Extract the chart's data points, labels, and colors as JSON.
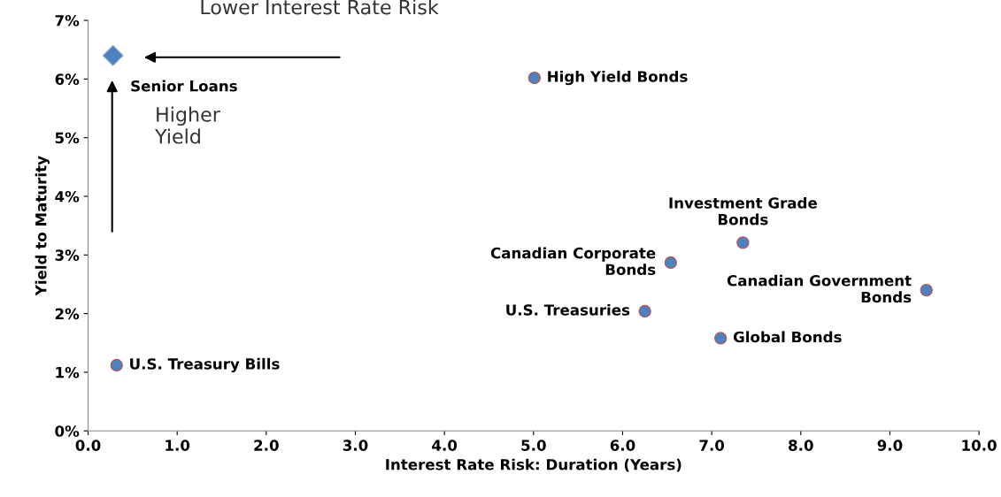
{
  "chart_data": {
    "type": "scatter",
    "xlabel": "Interest Rate Risk: Duration (Years)",
    "ylabel": "Yield to Maturity",
    "series": [
      {
        "name": "Senior Loans",
        "color": "#4f81bd",
        "marker": "diamond",
        "x": [
          0.28
        ],
        "values": [
          6.4
        ]
      },
      {
        "name": "High Yield Bonds",
        "color": "#4f81bd",
        "marker": "circle",
        "x": [
          5.01
        ],
        "values": [
          6.02
        ]
      },
      {
        "name": "Investment Grade\nBonds",
        "color": "#4f81bd",
        "marker": "circle",
        "x": [
          7.35
        ],
        "values": [
          3.21
        ]
      },
      {
        "name": "Canadian Corporate\nBonds",
        "color": "#4f81bd",
        "marker": "circle",
        "x": [
          6.54
        ],
        "values": [
          2.87
        ]
      },
      {
        "name": "Canadian Government\nBonds",
        "color": "#4f81bd",
        "marker": "circle",
        "x": [
          9.41
        ],
        "values": [
          2.4
        ]
      },
      {
        "name": "U.S. Treasuries",
        "color": "#4f81bd",
        "marker": "circle",
        "x": [
          6.25
        ],
        "values": [
          2.04
        ]
      },
      {
        "name": "Global Bonds",
        "color": "#4f81bd",
        "marker": "circle",
        "x": [
          7.1
        ],
        "values": [
          1.58
        ]
      },
      {
        "name": "U.S. Treasury Bills",
        "color": "#4f81bd",
        "marker": "circle",
        "x": [
          0.32
        ],
        "values": [
          1.12
        ]
      }
    ],
    "annotations": [
      "Lower Interest Rate Risk",
      "Higher\nYield"
    ],
    "xlim": [
      0,
      10
    ],
    "xticks": [
      {
        "value": 0,
        "label": "0.0"
      },
      {
        "value": 1,
        "label": "1.0"
      },
      {
        "value": 2,
        "label": "2.0"
      },
      {
        "value": 3,
        "label": "3.0"
      },
      {
        "value": 4,
        "label": "4.0"
      },
      {
        "value": 5,
        "label": "5.0"
      },
      {
        "value": 6,
        "label": "6.0"
      },
      {
        "value": 7,
        "label": "7.0"
      },
      {
        "value": 8,
        "label": "8.0"
      },
      {
        "value": 9,
        "label": "9.0"
      },
      {
        "value": 10,
        "label": "10.0"
      }
    ],
    "ylim": [
      0,
      7
    ],
    "yticks": [
      {
        "value": 0,
        "label": "0%"
      },
      {
        "value": 1,
        "label": "1%"
      },
      {
        "value": 2,
        "label": "2%"
      },
      {
        "value": 3,
        "label": "3%"
      },
      {
        "value": 4,
        "label": "4%"
      },
      {
        "value": 5,
        "label": "5%"
      },
      {
        "value": 6,
        "label": "6%"
      },
      {
        "value": 7,
        "label": "7%"
      }
    ],
    "grid": false,
    "legend": false
  }
}
